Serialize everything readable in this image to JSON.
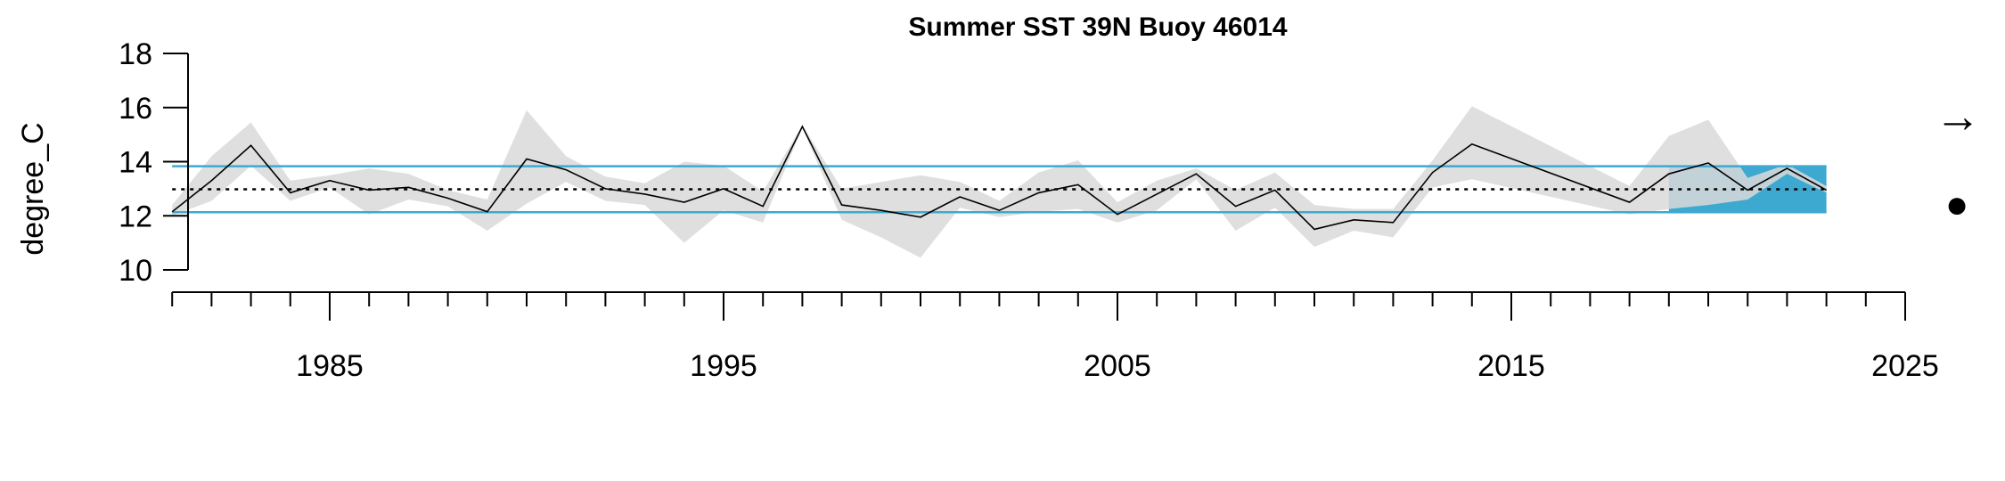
{
  "chart_data": {
    "type": "line",
    "title": "Summer SST 39N Buoy 46014",
    "xlabel": "",
    "ylabel": "degree_C",
    "xlim": [
      1980,
      2025
    ],
    "ylim": [
      10,
      18
    ],
    "y_ticks": [
      10,
      12,
      14,
      16,
      18
    ],
    "x_ticks_major": [
      1985,
      1995,
      2005,
      2015,
      2025
    ],
    "x_ticks_major_labels": [
      "1985",
      "1995",
      "2005",
      "2015",
      "2025"
    ],
    "x_ticks_minor_start": 1981,
    "x_ticks_minor_end": 2025,
    "mean": 12.98,
    "sd_upper": 13.83,
    "sd_lower": 12.13,
    "recent_period": [
      2019,
      2023
    ],
    "trend_symbol": "→",
    "mean_symbol": "●",
    "colors": {
      "series_line": "#000000",
      "sd_band": "#D9D9D9",
      "sd_lines": "#3DA9D0",
      "recent_fill": "#3DA9D0",
      "mean_line": "#000000"
    },
    "series": [
      {
        "x": [
          1981,
          1982,
          1983,
          1984,
          1985,
          1986,
          1987,
          1988,
          1989,
          1990,
          1991,
          1992,
          1993,
          1994,
          1995,
          1996,
          1997,
          1998,
          1999,
          2000,
          2001,
          2002,
          2003,
          2004,
          2005,
          2006,
          2007,
          2008,
          2009,
          2010,
          2011,
          2012,
          2013,
          2014,
          2018,
          2019,
          2020,
          2021,
          2022,
          2023
        ],
        "values": [
          12.15,
          13.3,
          14.6,
          12.85,
          13.3,
          12.95,
          13.05,
          12.65,
          12.15,
          14.1,
          13.7,
          13.0,
          12.8,
          12.5,
          13.0,
          12.35,
          15.3,
          12.4,
          12.2,
          11.95,
          12.7,
          12.2,
          12.85,
          13.15,
          12.05,
          12.8,
          13.55,
          12.35,
          12.95,
          11.5,
          11.85,
          11.75,
          13.6,
          14.65,
          12.5,
          13.55,
          13.95,
          12.95,
          13.75,
          12.95
        ],
        "upper": [
          12.4,
          14.2,
          15.45,
          13.3,
          13.5,
          13.75,
          13.55,
          12.95,
          12.6,
          15.9,
          14.2,
          13.45,
          13.2,
          14.0,
          13.85,
          12.9,
          15.35,
          13.0,
          13.25,
          13.5,
          13.25,
          12.55,
          13.6,
          14.05,
          12.5,
          13.3,
          13.75,
          12.95,
          13.6,
          12.4,
          12.25,
          12.25,
          14.05,
          16.05,
          13.1,
          14.95,
          15.55,
          13.4,
          13.9,
          13.1
        ],
        "lower": [
          12.0,
          12.55,
          13.85,
          12.55,
          13.05,
          12.05,
          12.6,
          12.35,
          11.45,
          12.45,
          13.25,
          12.55,
          12.4,
          11.0,
          12.2,
          11.75,
          15.25,
          11.85,
          11.2,
          10.45,
          12.3,
          11.95,
          12.15,
          12.25,
          11.75,
          12.2,
          13.35,
          11.45,
          12.3,
          10.85,
          11.45,
          11.2,
          13.05,
          13.35,
          12.05,
          12.25,
          12.4,
          12.6,
          13.55,
          12.85
        ]
      }
    ]
  }
}
